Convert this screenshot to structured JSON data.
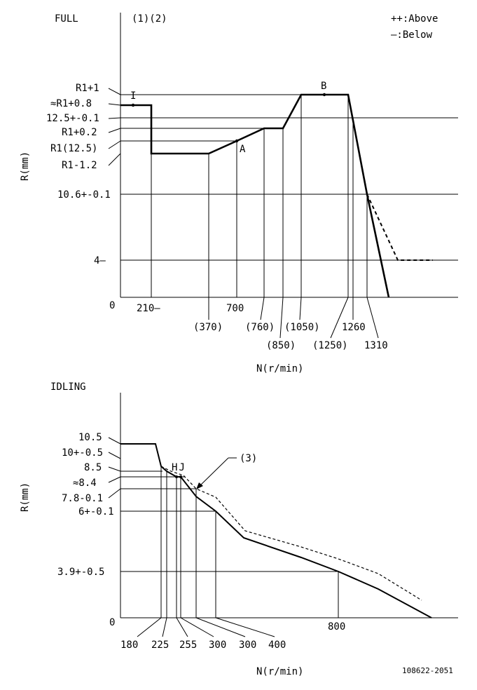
{
  "legend": {
    "above": "++:Above",
    "below": "—:Below"
  },
  "footer_code": "108622-2051",
  "chart_data": [
    {
      "type": "line",
      "title": "FULL",
      "subtitle": "(1)(2)",
      "xlabel": "N(r/min)",
      "ylabel": "R(mm)",
      "origin_label": "0",
      "y_tick_labels": [
        "R1+1",
        "≈R1+0.8",
        "12.5+-0.1",
        "R1+0.2",
        "R1(12.5)",
        "R1-1.2",
        "10.6+-0.1",
        "4—"
      ],
      "x_tick_labels": [
        "210—",
        "700",
        "(370)",
        "(760)",
        "(850)",
        "(1050)",
        "(1250)",
        "1260",
        "1310"
      ],
      "point_labels": [
        "I",
        "A",
        "B"
      ],
      "series": [
        {
          "style": "solid",
          "points": [
            [
              0,
              12.8
            ],
            [
              210,
              12.8
            ],
            [
              210,
              11.3
            ],
            [
              370,
              11.3
            ],
            [
              700,
              12.2
            ],
            [
              760,
              12.7
            ],
            [
              850,
              12.7
            ],
            [
              1050,
              13.5
            ],
            [
              1250,
              13.5
            ],
            [
              1310,
              10.6
            ],
            [
              1400,
              0
            ]
          ]
        },
        {
          "style": "dashed",
          "points": [
            [
              1310,
              10.6
            ],
            [
              1450,
              4
            ],
            [
              1550,
              4
            ]
          ]
        }
      ]
    },
    {
      "type": "line",
      "title": "IDLING",
      "subtitle": "(3)",
      "xlabel": "N(r/min)",
      "ylabel": "R(mm)",
      "origin_label": "0",
      "y_tick_labels": [
        "10.5",
        "10+-0.5",
        "8.5",
        "≈8.4",
        "7.8-0.1",
        "6+-0.1",
        "3.9+-0.5"
      ],
      "x_tick_labels": [
        "180",
        "225",
        "255",
        "300",
        "300",
        "400",
        "800"
      ],
      "point_labels": [
        "H",
        "J"
      ],
      "series": [
        {
          "style": "solid",
          "points": [
            [
              0,
              10.5
            ],
            [
              160,
              10.5
            ],
            [
              180,
              8.8
            ],
            [
              225,
              8.5
            ],
            [
              255,
              8.4
            ],
            [
              300,
              7.3
            ],
            [
              400,
              6.0
            ],
            [
              550,
              4.5
            ],
            [
              800,
              3.4
            ],
            [
              1050,
              0
            ]
          ]
        },
        {
          "style": "dashed",
          "points": [
            [
              180,
              8.8
            ],
            [
              225,
              8.55
            ],
            [
              270,
              8.2
            ],
            [
              300,
              7.8
            ],
            [
              400,
              6.8
            ],
            [
              550,
              5.0
            ],
            [
              800,
              3.9
            ],
            [
              1000,
              1.2
            ]
          ]
        }
      ]
    }
  ]
}
